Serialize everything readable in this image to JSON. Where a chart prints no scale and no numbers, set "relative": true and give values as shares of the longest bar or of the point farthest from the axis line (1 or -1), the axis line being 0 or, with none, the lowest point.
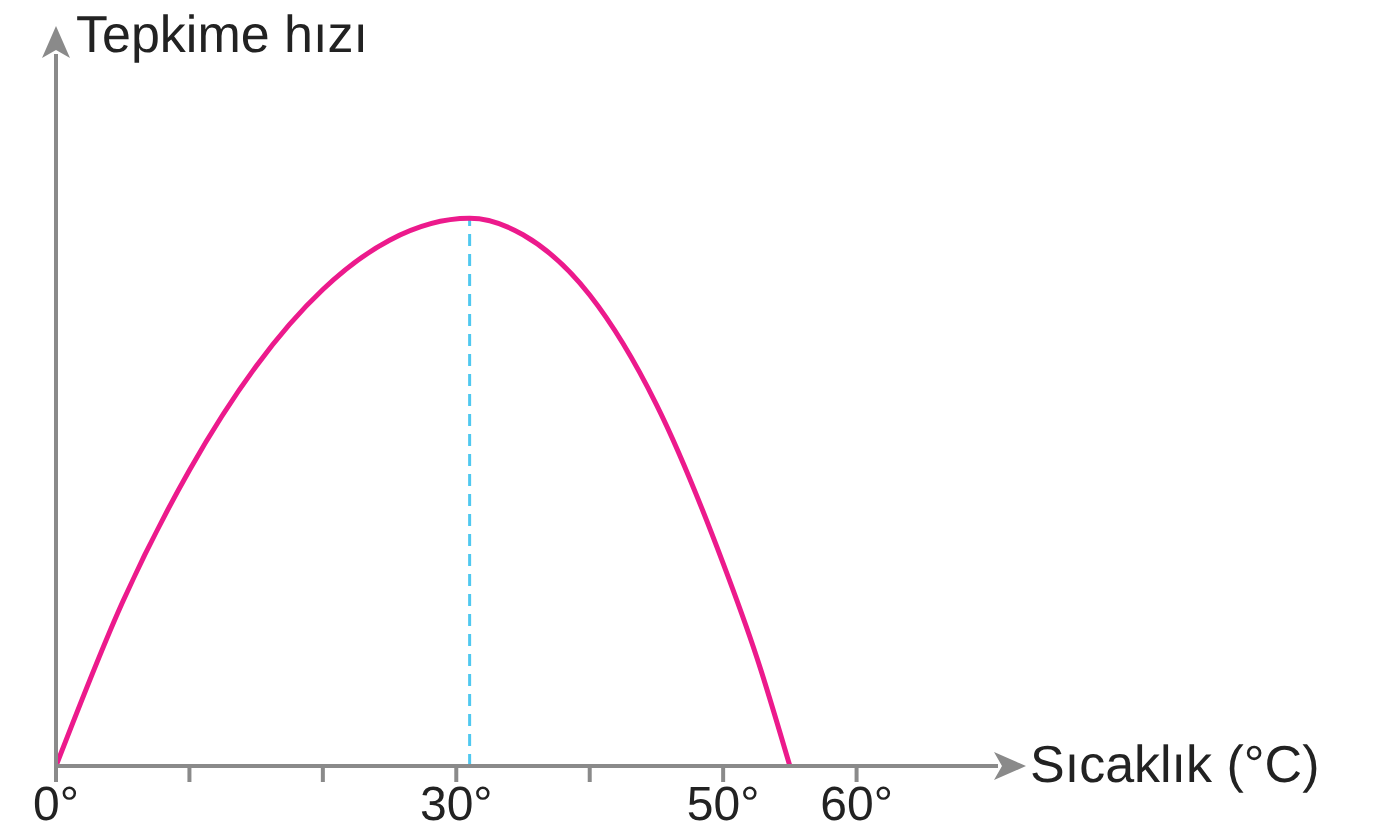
{
  "chart_data": {
    "type": "line",
    "relative": true,
    "xlabel": "Sıcaklık (°C)",
    "ylabel": "Tepkime hızı",
    "xlim": [
      0,
      70
    ],
    "xticks": [
      {
        "value": 0,
        "label": "0°"
      },
      {
        "value": 10,
        "label": null
      },
      {
        "value": 20,
        "label": null
      },
      {
        "value": 30,
        "label": "30°"
      },
      {
        "value": 40,
        "label": null
      },
      {
        "value": 50,
        "label": "50°"
      },
      {
        "value": 60,
        "label": "60°"
      }
    ],
    "x": [
      0,
      5,
      10,
      15,
      20,
      25,
      31,
      35,
      40,
      45,
      50,
      52.5,
      55
    ],
    "series": [
      {
        "color": "#ec1a8c",
        "values": [
          0,
          0.3,
          0.54,
          0.73,
          0.87,
          0.96,
          1,
          0.97,
          0.86,
          0.66,
          0.37,
          0.2,
          0
        ]
      }
    ],
    "ref_lines": [
      {
        "axis": "x",
        "value": 31,
        "color": "#4fc8f0",
        "line_style": "dashed"
      }
    ],
    "grid": false,
    "marker": "none",
    "line_style": "solid"
  }
}
